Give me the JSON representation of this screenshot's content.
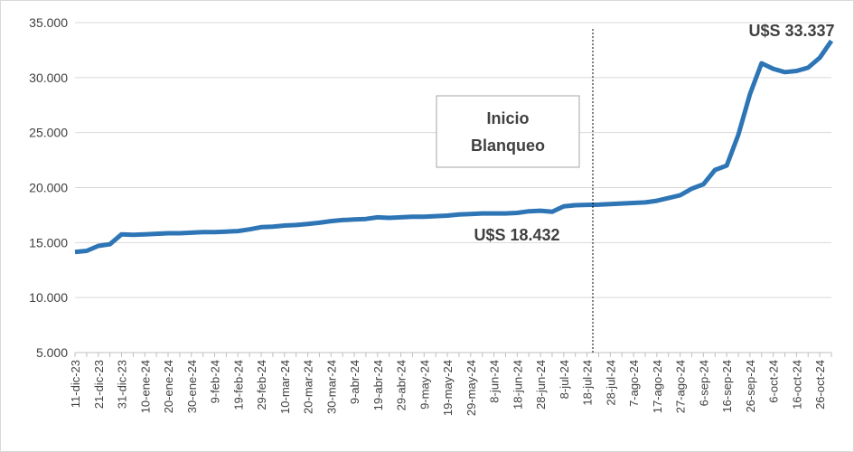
{
  "chart_data": {
    "type": "line",
    "categories": [
      "11-dic-23",
      null,
      "21-dic-23",
      null,
      "31-dic-23",
      null,
      "10-ene-24",
      null,
      "20-ene-24",
      null,
      "30-ene-24",
      null,
      "9-feb-24",
      null,
      "19-feb-24",
      null,
      "29-feb-24",
      null,
      "10-mar-24",
      null,
      "20-mar-24",
      null,
      "30-mar-24",
      null,
      "9-abr-24",
      null,
      "19-abr-24",
      null,
      "29-abr-24",
      null,
      "9-may-24",
      null,
      "19-may-24",
      null,
      "29-may-24",
      null,
      "8-jun-24",
      null,
      "18-jun-24",
      null,
      "28-jun-24",
      null,
      "8-jul-24",
      null,
      "18-jul-24",
      null,
      "28-jul-24",
      null,
      "7-ago-24",
      null,
      "17-ago-24",
      null,
      "27-ago-24",
      null,
      "6-sep-24",
      null,
      "16-sep-24",
      null,
      "26-sep-24",
      null,
      "6-oct-24",
      null,
      "16-oct-24",
      null,
      "26-oct-24",
      null
    ],
    "series": [
      {
        "name": "U$S",
        "color": "#2e75b6",
        "values": [
          14150,
          14250,
          14700,
          14850,
          15750,
          15700,
          15750,
          15800,
          15850,
          15850,
          15900,
          15950,
          15950,
          16000,
          16050,
          16200,
          16400,
          16450,
          16550,
          16600,
          16700,
          16800,
          16950,
          17050,
          17100,
          17150,
          17300,
          17250,
          17300,
          17350,
          17350,
          17400,
          17450,
          17550,
          17600,
          17650,
          17650,
          17650,
          17700,
          17850,
          17900,
          17800,
          18300,
          18400,
          18432,
          18450,
          18500,
          18550,
          18600,
          18650,
          18800,
          19050,
          19300,
          19900,
          20300,
          21600,
          22000,
          24800,
          28500,
          31300,
          30800,
          30500,
          30600,
          30900,
          31800,
          33337
        ]
      }
    ],
    "ylim": [
      5000,
      35000
    ],
    "yticks": [
      {
        "value": 5000,
        "label": "5.000"
      },
      {
        "value": 10000,
        "label": "10.000"
      },
      {
        "value": 15000,
        "label": "15.000"
      },
      {
        "value": 20000,
        "label": "20.000"
      },
      {
        "value": 25000,
        "label": "25.000"
      },
      {
        "value": 30000,
        "label": "30.000"
      },
      {
        "value": 35000,
        "label": "35.000"
      }
    ],
    "grid": true,
    "annotations": [
      {
        "text": "U$S 33.337"
      },
      {
        "text": "U$S 18.432"
      },
      {
        "text": [
          "Inicio",
          "Blanqueo"
        ]
      }
    ]
  }
}
